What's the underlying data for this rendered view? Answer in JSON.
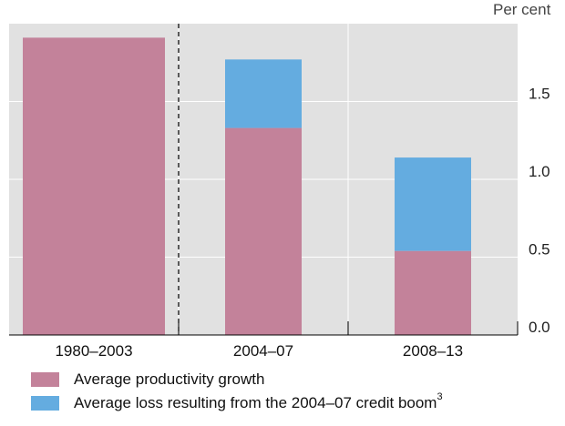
{
  "chart_data": {
    "type": "bar",
    "stacked": true,
    "categories": [
      "1980–2003",
      "2004–07",
      "2008–13"
    ],
    "series": [
      {
        "name": "Average productivity growth",
        "values": [
          1.91,
          1.33,
          0.54
        ],
        "color": "#c3829a"
      },
      {
        "name": "Average loss resulting from the 2004–07 credit boom",
        "name_superscript": "3",
        "values": [
          0,
          0.44,
          0.6
        ],
        "color": "#64ace0"
      }
    ],
    "ylabel": "Per cent",
    "ylim": [
      0,
      2.0
    ],
    "yticks": [
      0.0,
      0.5,
      1.0,
      1.5
    ],
    "ytick_labels": [
      "0.0",
      "0.5",
      "1.0",
      "1.5"
    ],
    "y_axis_side": "right",
    "grid": true,
    "legend_position": "bottom-left",
    "background_color": "#e1e1e1"
  }
}
